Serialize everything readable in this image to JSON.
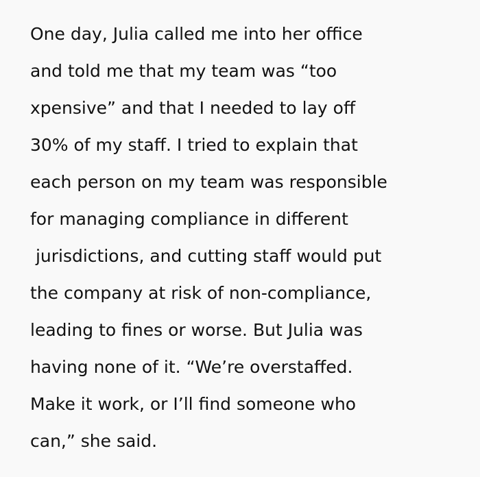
{
  "paragraph": {
    "lines": [
      "One day, Julia called me into her office",
      "and told me that my team was “too",
      "xpensive” and that I needed to lay off",
      "30% of my staff. I tried to explain that",
      "each person on my team was responsible",
      "for managing compliance in different",
      " jurisdictions, and cutting staff would put",
      "the company at risk of non-compliance,",
      "leading to fines or worse. But Julia was",
      "having none of it. “We’re overstaffed.",
      "Make it work, or I’ll find someone who",
      "can,” she said."
    ]
  }
}
